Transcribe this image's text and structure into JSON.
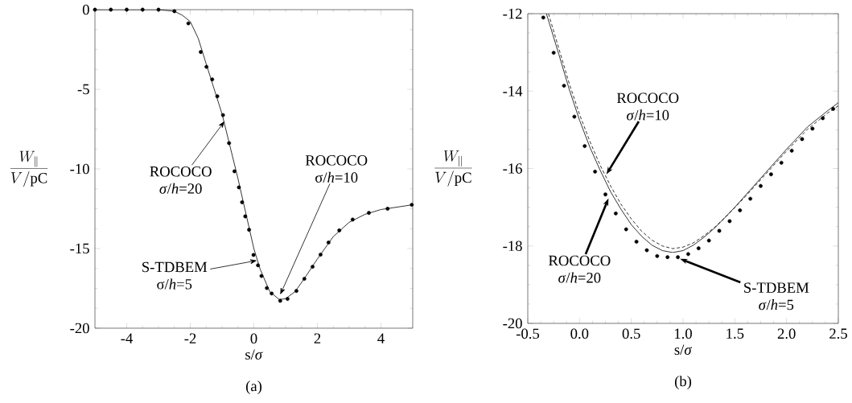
{
  "chart_data": [
    {
      "type": "line",
      "title": "(a)",
      "xlabel": "s/*σ*",
      "ylabel": "\\frac{W_{\\parallel}}{V/\\mathrm{pC}}",
      "xlim": [
        -5,
        5
      ],
      "ylim": [
        -20,
        0
      ],
      "xticks": [
        -4,
        -2,
        0,
        2,
        4
      ],
      "yticks": [
        0,
        -5,
        -10,
        -15,
        -20
      ],
      "series": [
        {
          "type": "line",
          "color": "#000000",
          "line_style": "solid",
          "x": [
            -5,
            -3,
            -2.5,
            -2.25,
            -2,
            -1.75,
            -1.5,
            -1.0,
            -0.5,
            0,
            0.2,
            0.5,
            0.8,
            1.0,
            1.3,
            1.6,
            2,
            2.5,
            3,
            3.5,
            4,
            5
          ],
          "values": [
            0,
            0,
            -0.1,
            -0.35,
            -0.75,
            -1.8,
            -3.4,
            -6.55,
            -10.6,
            -15.0,
            -16.3,
            -17.7,
            -18.2,
            -18.15,
            -17.7,
            -16.85,
            -15.65,
            -14.25,
            -13.35,
            -12.85,
            -12.55,
            -12.25
          ]
        },
        {
          "type": "scatter",
          "color": "#000000",
          "marker": "circle",
          "x": [
            -5,
            -4.5,
            -4,
            -3.5,
            -3,
            -2.5,
            -2.06,
            -1.67,
            -1.49,
            -1.31,
            -1.15,
            -0.97,
            -0.78,
            -0.61,
            -0.47,
            -0.37,
            -0.27,
            -0.15,
            -0.01,
            0.13,
            0.24,
            0.41,
            0.56,
            0.83,
            1.06,
            1.34,
            1.59,
            1.85,
            2.1,
            2.35,
            2.69,
            3.11,
            3.62,
            4.21,
            4.97
          ],
          "values": [
            0,
            0,
            0,
            0,
            0,
            -0.1,
            -0.86,
            -2.66,
            -3.59,
            -4.38,
            -5.44,
            -6.62,
            -8.38,
            -10.15,
            -11.16,
            -12.09,
            -12.98,
            -13.82,
            -15.4,
            -16.05,
            -16.72,
            -17.48,
            -17.82,
            -18.28,
            -18.16,
            -17.66,
            -16.9,
            -16.14,
            -15.38,
            -14.62,
            -13.86,
            -13.18,
            -12.76,
            -12.5,
            -12.25
          ]
        }
      ],
      "annotations": [
        {
          "text": "ROCOCO *σ*/*h*=20",
          "x": -0.92,
          "y": -7.0
        },
        {
          "text": "ROCOCO σ/*h*=10",
          "x": 0.83,
          "y": -17.9
        },
        {
          "text": "S-TDBEM σ/*h*=5",
          "x": 0.1,
          "y": -15.75
        }
      ]
    },
    {
      "type": "line",
      "title": "(b)",
      "xlabel": "s/*σ*",
      "ylabel": "\\frac{W_{\\parallel}}{V/\\mathrm{pC}}",
      "xlim": [
        -0.5,
        2.5
      ],
      "ylim": [
        -20,
        -12
      ],
      "xticks": [
        -0.5,
        {
          "value": 0,
          "label": "0.0"
        },
        0.5,
        {
          "value": 1,
          "label": "1.0"
        },
        1.5,
        {
          "value": 2,
          "label": "2.0"
        },
        2.5
      ],
      "yticks": [
        -12,
        -14,
        -16,
        -18,
        -20
      ],
      "series": [
        {
          "type": "line",
          "color": "#000000",
          "line_style": "solid",
          "x": [
            -0.32,
            -0.2,
            -0.1,
            0.0,
            0.1,
            0.2,
            0.3,
            0.4,
            0.5,
            0.6,
            0.7,
            0.8,
            0.9,
            1.0,
            1.1,
            1.2,
            1.3,
            1.4,
            1.5,
            1.6,
            1.8,
            2.0,
            2.2,
            2.4,
            2.5
          ],
          "values": [
            -12.0,
            -13.05,
            -13.95,
            -14.75,
            -15.45,
            -16.05,
            -16.6,
            -17.05,
            -17.45,
            -17.75,
            -17.98,
            -18.12,
            -18.17,
            -18.12,
            -17.98,
            -17.78,
            -17.55,
            -17.28,
            -17.0,
            -16.7,
            -16.1,
            -15.5,
            -14.93,
            -14.5,
            -14.3
          ]
        },
        {
          "type": "line",
          "color": "#000000",
          "line_style": "dashed",
          "x": [
            -0.3,
            -0.2,
            -0.1,
            0.0,
            0.1,
            0.2,
            0.3,
            0.4,
            0.5,
            0.6,
            0.7,
            0.8,
            0.9,
            1.0,
            1.1,
            1.2,
            1.3,
            1.4,
            1.5,
            1.6,
            1.8,
            2.0,
            2.2,
            2.4,
            2.5
          ],
          "values": [
            -12.0,
            -12.9,
            -13.8,
            -14.6,
            -15.3,
            -15.92,
            -16.45,
            -16.92,
            -17.3,
            -17.62,
            -17.85,
            -18.0,
            -18.07,
            -18.03,
            -17.92,
            -17.74,
            -17.53,
            -17.28,
            -17.01,
            -16.73,
            -16.14,
            -15.55,
            -14.99,
            -14.56,
            -14.38
          ]
        },
        {
          "type": "scatter",
          "color": "#000000",
          "marker": "circle",
          "x": [
            -0.35,
            -0.25,
            -0.15,
            -0.05,
            0.05,
            0.15,
            0.25,
            0.35,
            0.45,
            0.55,
            0.65,
            0.75,
            0.85,
            0.95,
            1.05,
            1.15,
            1.25,
            1.35,
            1.45,
            1.55,
            1.65,
            1.75,
            1.85,
            1.95,
            2.05,
            2.15,
            2.25,
            2.35,
            2.45
          ],
          "values": [
            -12.1,
            -13.01,
            -13.86,
            -14.66,
            -15.42,
            -16.08,
            -16.67,
            -17.16,
            -17.57,
            -17.89,
            -18.11,
            -18.26,
            -18.29,
            -18.29,
            -18.21,
            -18.06,
            -17.86,
            -17.61,
            -17.36,
            -17.08,
            -16.78,
            -16.45,
            -16.15,
            -15.85,
            -15.54,
            -15.24,
            -14.97,
            -14.7,
            -14.46
          ]
        }
      ],
      "annotations": [
        {
          "text": "ROCOCO *σ*/*h*=10",
          "x": 0.26,
          "y": -16.15
        },
        {
          "text": "ROCOCO *σ*/*h*=20",
          "x": 0.28,
          "y": -16.77
        },
        {
          "text": "S-TDBEM *σ*/*h*=5",
          "x": 0.97,
          "y": -18.33
        }
      ]
    }
  ]
}
